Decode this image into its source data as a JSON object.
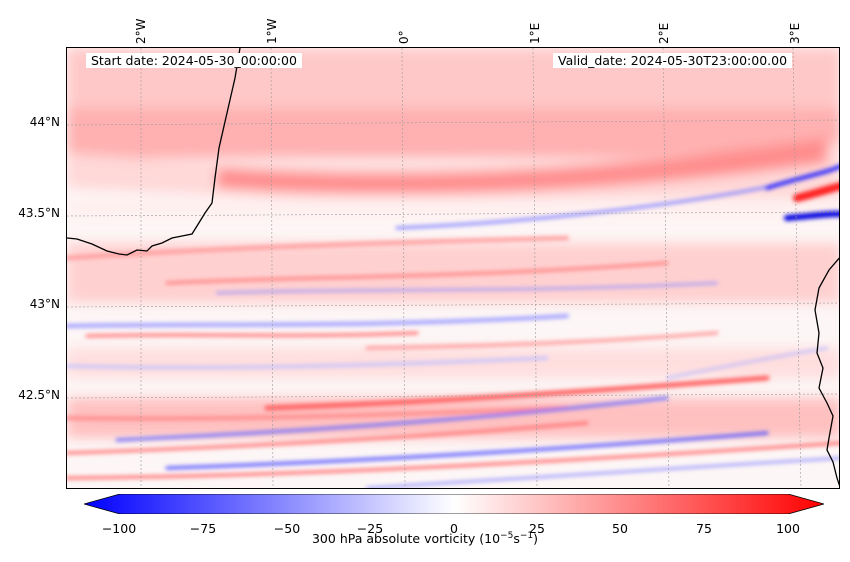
{
  "map": {
    "start_date": "Start date: 2024-05-30_00:00:00",
    "valid_date": "Valid_date: 2024-05-30T23:00:00.00",
    "lon_labels": [
      "2°W",
      "1°W",
      "0°",
      "1°E",
      "2°E",
      "3°E"
    ],
    "lat_labels": [
      "44°N",
      "43.5°N",
      "43°N",
      "42.5°N"
    ],
    "field": "300 hPa absolute vorticity"
  },
  "colorbar": {
    "ticks": [
      "−100",
      "−75",
      "−50",
      "−25",
      "0",
      "25",
      "50",
      "75",
      "100"
    ],
    "label_prefix": "300 hPa absolute vorticity (10",
    "label_exp1": "−5",
    "label_mid": "s",
    "label_exp2": "−1",
    "label_suffix": ")",
    "min": -100,
    "max": 100,
    "colormap": "bwr",
    "color_low": "#0000ff",
    "color_mid": "#ffffff",
    "color_high": "#ff0000"
  }
}
